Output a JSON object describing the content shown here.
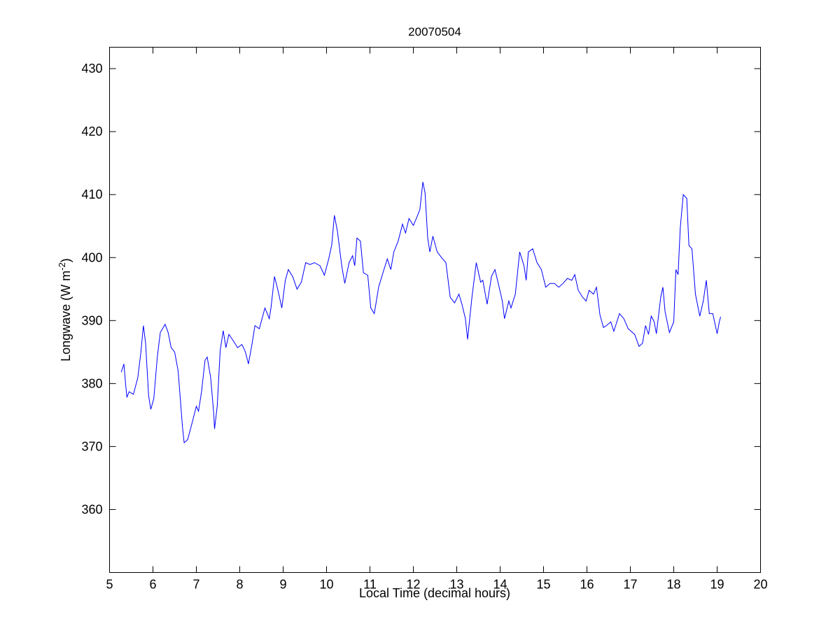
{
  "chart_data": {
    "type": "line",
    "title": "20070504",
    "xlabel": "Local Time (decimal hours)",
    "ylabel_main": "Longwave (W m",
    "ylabel_sup": "-2",
    "ylabel_close": ")",
    "xlim": [
      5,
      20
    ],
    "ylim": [
      350,
      433.4
    ],
    "xticks": [
      "5",
      "6",
      "7",
      "8",
      "9",
      "10",
      "11",
      "12",
      "13",
      "14",
      "15",
      "16",
      "17",
      "18",
      "19",
      "20"
    ],
    "yticks": [
      "360",
      "370",
      "380",
      "390",
      "400",
      "410",
      "420",
      "430"
    ],
    "grid": false,
    "line_color": "#0000ff",
    "series": [
      {
        "x": [
          5.27,
          5.33,
          5.37,
          5.4,
          5.45,
          5.55,
          5.65,
          5.72,
          5.78,
          5.83,
          5.9,
          5.95,
          6.02,
          6.1,
          6.17,
          6.28,
          6.35,
          6.42,
          6.5,
          6.58,
          6.68,
          6.72,
          6.8,
          6.9,
          7.0,
          7.05,
          7.12,
          7.2,
          7.25,
          7.33,
          7.4,
          7.42,
          7.48,
          7.55,
          7.62,
          7.68,
          7.75,
          7.85,
          7.95,
          8.05,
          8.13,
          8.2,
          8.28,
          8.35,
          8.45,
          8.58,
          8.68,
          8.72,
          8.8,
          8.88,
          8.97,
          9.05,
          9.12,
          9.22,
          9.32,
          9.42,
          9.52,
          9.62,
          9.72,
          9.85,
          9.95,
          10.05,
          10.12,
          10.18,
          10.25,
          10.35,
          10.42,
          10.52,
          10.6,
          10.65,
          10.7,
          10.78,
          10.85,
          10.95,
          11.02,
          11.1,
          11.2,
          11.3,
          11.4,
          11.48,
          11.55,
          11.65,
          11.75,
          11.82,
          11.9,
          12.0,
          12.08,
          12.15,
          12.22,
          12.27,
          12.33,
          12.38,
          12.45,
          12.55,
          12.65,
          12.75,
          12.85,
          12.95,
          13.05,
          13.12,
          13.2,
          13.25,
          13.35,
          13.45,
          13.55,
          13.6,
          13.7,
          13.8,
          13.88,
          13.95,
          14.05,
          14.1,
          14.2,
          14.25,
          14.35,
          14.45,
          14.55,
          14.6,
          14.65,
          14.75,
          14.85,
          14.95,
          15.05,
          15.15,
          15.25,
          15.35,
          15.45,
          15.55,
          15.65,
          15.72,
          15.8,
          15.9,
          15.98,
          16.05,
          16.15,
          16.22,
          16.3,
          16.38,
          16.45,
          16.55,
          16.62,
          16.75,
          16.85,
          16.95,
          17.1,
          17.2,
          17.28,
          17.35,
          17.42,
          17.48,
          17.55,
          17.6,
          17.7,
          17.75,
          17.8,
          17.9,
          18.0,
          18.05,
          18.1,
          18.15,
          18.22,
          18.3,
          18.35,
          18.42,
          18.5,
          18.6,
          18.68,
          18.75,
          18.82,
          18.9,
          19.0,
          19.05,
          19.08
        ],
        "y": [
          381.8,
          383.1,
          380.0,
          377.8,
          378.7,
          378.3,
          380.9,
          384.8,
          389.2,
          386.4,
          378.1,
          375.9,
          377.6,
          384.2,
          388.1,
          389.4,
          388.1,
          385.7,
          385.0,
          382.0,
          373.1,
          370.6,
          371.1,
          373.7,
          376.4,
          375.6,
          378.7,
          383.7,
          384.2,
          380.9,
          375.3,
          372.8,
          376.4,
          385.3,
          388.4,
          385.7,
          387.8,
          386.8,
          385.7,
          386.2,
          385.0,
          383.1,
          386.2,
          389.2,
          388.7,
          392.0,
          390.3,
          392.0,
          397.0,
          394.8,
          392.0,
          396.4,
          398.1,
          397.0,
          395.0,
          396.1,
          399.2,
          398.9,
          399.2,
          398.7,
          397.2,
          399.8,
          402.0,
          406.7,
          404.2,
          398.7,
          395.9,
          399.2,
          400.3,
          398.7,
          403.1,
          402.6,
          397.6,
          397.2,
          392.0,
          391.1,
          395.3,
          397.6,
          399.8,
          398.1,
          400.9,
          402.6,
          405.3,
          403.9,
          406.2,
          405.1,
          406.4,
          407.6,
          412.0,
          410.3,
          403.1,
          400.9,
          403.4,
          400.9,
          400.0,
          399.2,
          393.7,
          392.8,
          394.2,
          392.6,
          390.3,
          387.0,
          393.7,
          399.2,
          396.1,
          396.4,
          392.6,
          397.0,
          398.1,
          396.1,
          393.1,
          390.3,
          393.1,
          392.0,
          394.2,
          400.9,
          398.7,
          396.4,
          400.9,
          401.4,
          399.2,
          398.1,
          395.3,
          395.9,
          395.9,
          395.3,
          395.9,
          396.7,
          396.4,
          397.3,
          394.8,
          393.7,
          393.1,
          394.8,
          394.2,
          395.3,
          390.9,
          388.9,
          389.2,
          389.8,
          388.3,
          391.1,
          390.3,
          388.7,
          387.8,
          385.9,
          386.4,
          389.2,
          387.8,
          390.7,
          389.8,
          387.9,
          393.7,
          395.3,
          391.4,
          388.1,
          389.8,
          398.1,
          397.3,
          404.7,
          410.0,
          409.4,
          401.9,
          401.4,
          394.2,
          390.7,
          393.1,
          396.4,
          391.1,
          391.1,
          387.9,
          389.8,
          390.6
        ]
      }
    ]
  }
}
